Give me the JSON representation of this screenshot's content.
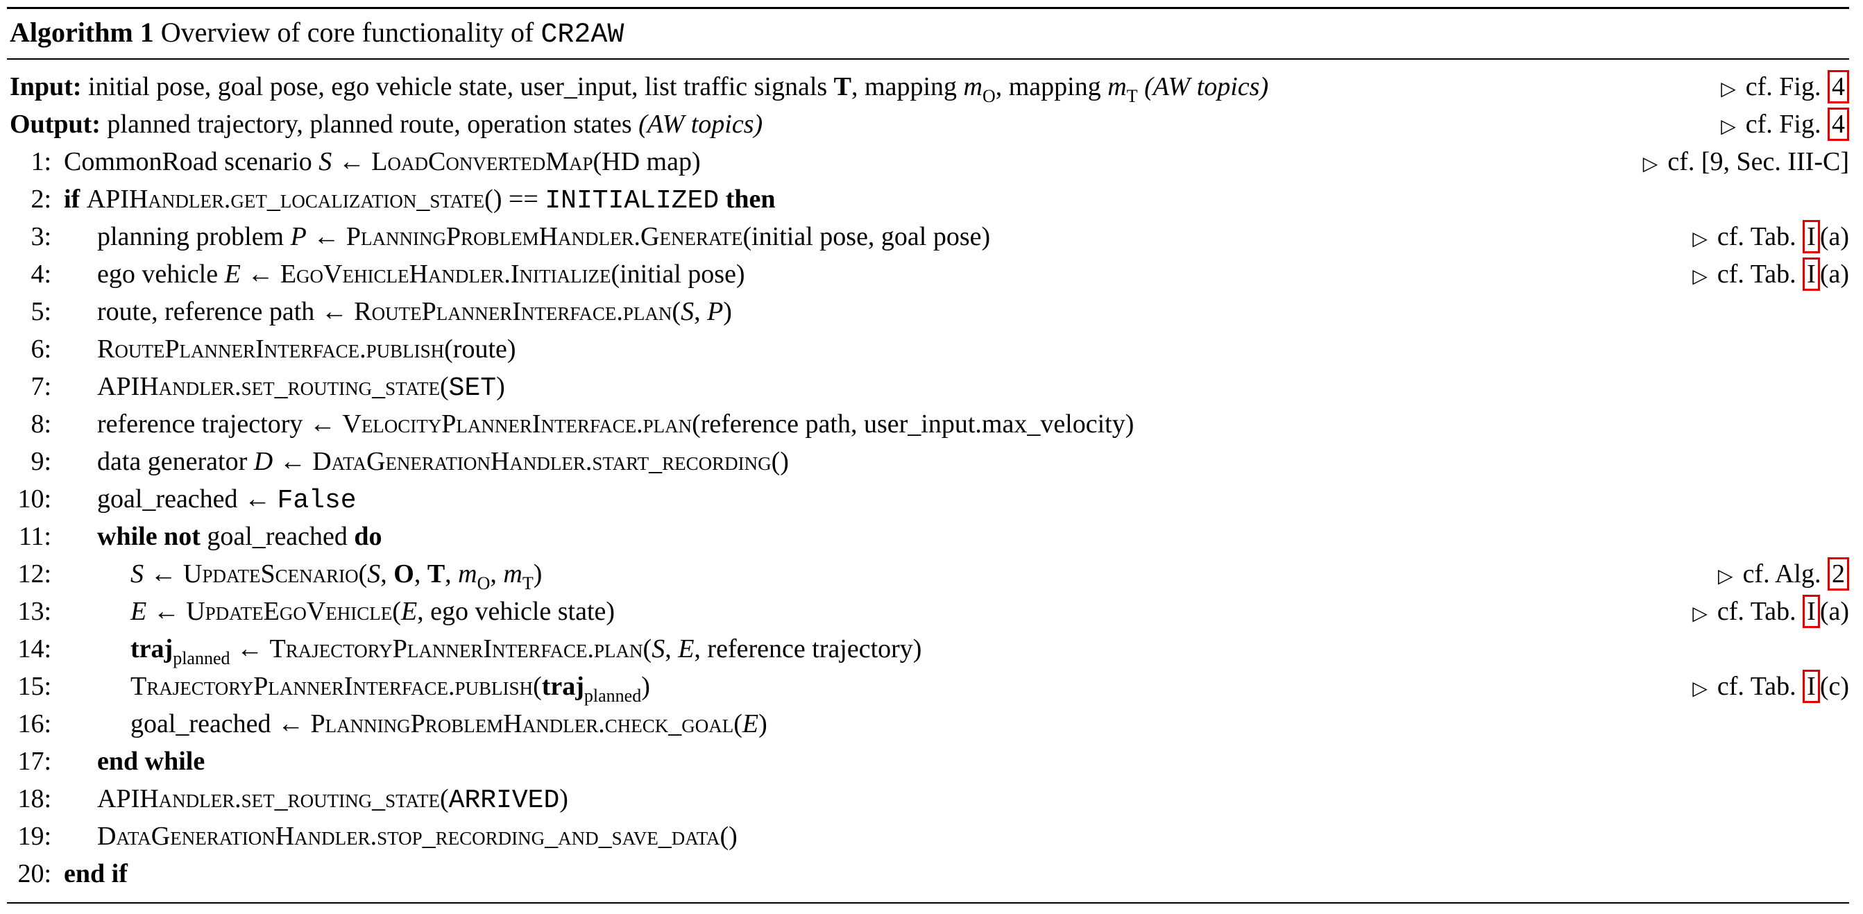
{
  "caption": {
    "label": "Algorithm 1",
    "text": "Overview of core functionality of",
    "name": "CR2AW"
  },
  "input": {
    "kw": "Input:",
    "t1": "initial pose, goal pose, ego vehicle state, user_input, list traffic signals",
    "v1": "T",
    "t2": ", mapping",
    "v2": "m",
    "s2": "O",
    "t3": ", mapping",
    "v3": "m",
    "s3": "T",
    "t4": "(AW topics)",
    "cmt": "cf. Fig.",
    "ref": "4"
  },
  "output": {
    "kw": "Output:",
    "t1": "planned trajectory, planned route, operation states",
    "t2": "(AW topics)",
    "cmt": "cf. Fig.",
    "ref": "4"
  },
  "l1": {
    "n": "1:",
    "t1": "CommonRoad scenario",
    "v": "S",
    "arrow": "←",
    "fn": "LoadConvertedMap",
    "args": "(HD map)",
    "cmt": "cf. [9, Sec. III-C]"
  },
  "l2": {
    "n": "2:",
    "if": "if",
    "fn": "APIHandler.get_localization_state",
    "args": "() ==",
    "state": "INITIALIZED",
    "then": "then"
  },
  "l3": {
    "n": "3:",
    "t1": "planning problem",
    "v": "P",
    "arrow": "←",
    "fn": "PlanningProblemHandler.Generate",
    "args": "(initial pose, goal pose)",
    "cmt": "cf. Tab.",
    "ref": "I",
    "suf": "(a)"
  },
  "l4": {
    "n": "4:",
    "t1": "ego vehicle",
    "v": "E",
    "arrow": "←",
    "fn": "EgoVehicleHandler.Initialize",
    "args": "(initial pose)",
    "cmt": "cf. Tab.",
    "ref": "I",
    "suf": "(a)"
  },
  "l5": {
    "n": "5:",
    "t1": "route, reference path",
    "arrow": "←",
    "fn": "RoutePlannerInterface.plan",
    "a1": "(",
    "v1": "S",
    "a2": ",",
    "v2": "P",
    "a3": ")"
  },
  "l6": {
    "n": "6:",
    "fn": "RoutePlannerInterface.publish",
    "args": "(route)"
  },
  "l7": {
    "n": "7:",
    "fn": "APIHandler.set_routing_state",
    "a1": "(",
    "state": "SET",
    "a2": ")"
  },
  "l8": {
    "n": "8:",
    "t1": "reference trajectory",
    "arrow": "←",
    "fn": "VelocityPlannerInterface.plan",
    "args": "(reference path, user_input.max_velocity)"
  },
  "l9": {
    "n": "9:",
    "t1": "data generator",
    "v": "D",
    "arrow": "←",
    "fn": "DataGenerationHandler.start_recording",
    "args": "()"
  },
  "l10": {
    "n": "10:",
    "t1": "goal_reached",
    "arrow": "←",
    "val": "False"
  },
  "l11": {
    "n": "11:",
    "kw1": "while not",
    "t1": "goal_reached",
    "kw2": "do"
  },
  "l12": {
    "n": "12:",
    "v": "S",
    "arrow": "←",
    "fn": "UpdateScenario",
    "a1": "(",
    "v1": "S",
    "c1": ",",
    "b1": "O",
    "c2": ",",
    "b2": "T",
    "c3": ",",
    "m1": "m",
    "m1s": "O",
    "c4": ",",
    "m2": "m",
    "m2s": "T",
    "a2": ")",
    "cmt": "cf. Alg.",
    "ref": "2"
  },
  "l13": {
    "n": "13:",
    "v": "E",
    "arrow": "←",
    "fn": "UpdateEgoVehicle",
    "a1": "(",
    "v1": "E",
    "a2": ", ego vehicle state)",
    "cmt": "cf. Tab.",
    "ref": "I",
    "suf": "(a)"
  },
  "l14": {
    "n": "14:",
    "bv": "traj",
    "bs": "planned",
    "arrow": "←",
    "fn": "TrajectoryPlannerInterface.plan",
    "a1": "(",
    "v1": "S",
    "a2": ",",
    "v2": "E",
    "a3": ", reference trajectory)"
  },
  "l15": {
    "n": "15:",
    "fn": "TrajectoryPlannerInterface.publish",
    "a1": "(",
    "bv": "traj",
    "bs": "planned",
    "a2": ")",
    "cmt": "cf. Tab.",
    "ref": "I",
    "suf": "(c)"
  },
  "l16": {
    "n": "16:",
    "t1": "goal_reached",
    "arrow": "←",
    "fn": "PlanningProblemHandler.check_goal",
    "a1": "(",
    "v1": "E",
    "a2": ")"
  },
  "l17": {
    "n": "17:",
    "kw": "end while"
  },
  "l18": {
    "n": "18:",
    "fn": "APIHandler.set_routing_state",
    "a1": "(",
    "state": "ARRIVED",
    "a2": ")"
  },
  "l19": {
    "n": "19:",
    "fn": "DataGenerationHandler.stop_recording_and_save_data",
    "args": "()"
  },
  "l20": {
    "n": "20:",
    "kw": "end if"
  },
  "comment_marker": "▷"
}
